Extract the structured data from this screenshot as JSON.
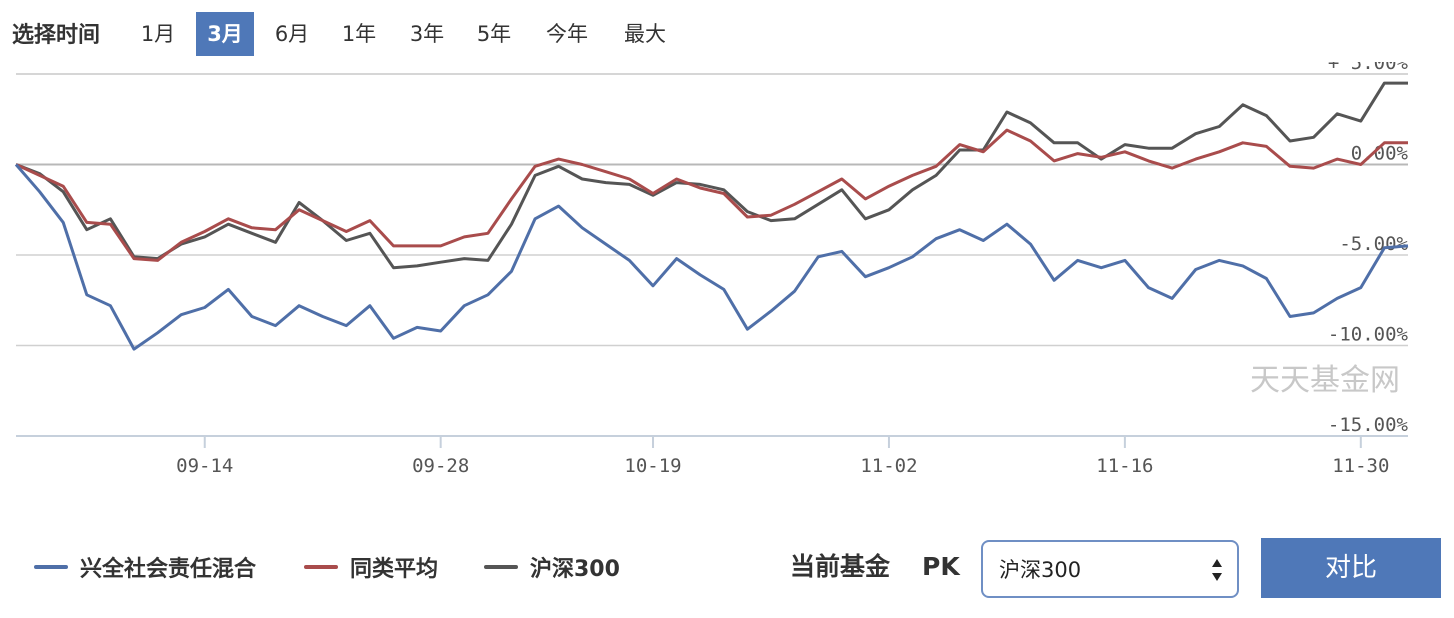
{
  "range_selector": {
    "label": "选择时间",
    "options": [
      "1月",
      "3月",
      "6月",
      "1年",
      "3年",
      "5年",
      "今年",
      "最大"
    ],
    "active": "3月"
  },
  "chart_data": {
    "type": "line",
    "x_ticks": [
      "09-14",
      "09-28",
      "10-19",
      "11-02",
      "11-16",
      "11-30"
    ],
    "y_ticks": [
      "+ 5.00%",
      "0.00%",
      "-5.00%",
      "-10.00%",
      "-15.00%"
    ],
    "ylim": [
      -15,
      5
    ],
    "watermark": "天天基金网",
    "series": [
      {
        "name": "兴全社会责任混合",
        "color": "#4f6fa8",
        "values": [
          0,
          -1.5,
          -3.2,
          -7.2,
          -7.8,
          -10.2,
          -9.3,
          -8.3,
          -7.9,
          -6.9,
          -8.4,
          -8.9,
          -7.8,
          -8.4,
          -8.9,
          -7.8,
          -9.6,
          -9,
          -9.2,
          -7.8,
          -7.2,
          -5.9,
          -3,
          -2.3,
          -3.5,
          -4.4,
          -5.3,
          -6.7,
          -5.2,
          -6.1,
          -6.9,
          -9.1,
          -8.1,
          -7,
          -5.1,
          -4.8,
          -6.2,
          -5.7,
          -5.1,
          -4.1,
          -3.6,
          -4.2,
          -3.3,
          -4.4,
          -6.4,
          -5.3,
          -5.7,
          -5.3,
          -6.8,
          -7.4,
          -5.8,
          -5.3,
          -5.6,
          -6.3,
          -8.4,
          -8.2,
          -7.4,
          -6.8,
          -4.6,
          -4.5
        ]
      },
      {
        "name": "同类平均",
        "color": "#a94c4c",
        "values": [
          0,
          -0.6,
          -1.2,
          -3.2,
          -3.3,
          -5.2,
          -5.3,
          -4.3,
          -3.7,
          -3,
          -3.5,
          -3.6,
          -2.5,
          -3.1,
          -3.7,
          -3.1,
          -4.5,
          -4.5,
          -4.5,
          -4,
          -3.8,
          -1.9,
          -0.1,
          0.3,
          0,
          -0.4,
          -0.8,
          -1.6,
          -0.8,
          -1.3,
          -1.6,
          -2.9,
          -2.8,
          -2.2,
          -1.5,
          -0.8,
          -1.9,
          -1.2,
          -0.6,
          -0.1,
          1.1,
          0.7,
          1.9,
          1.3,
          0.2,
          0.6,
          0.4,
          0.7,
          0.2,
          -0.2,
          0.3,
          0.7,
          1.2,
          1,
          -0.1,
          -0.2,
          0.3,
          0,
          1.2,
          1.2
        ]
      },
      {
        "name": "沪深300",
        "color": "#555555",
        "values": [
          0,
          -0.5,
          -1.5,
          -3.6,
          -3,
          -5.1,
          -5.2,
          -4.4,
          -4,
          -3.3,
          -3.8,
          -4.3,
          -2.1,
          -3.1,
          -4.2,
          -3.8,
          -5.7,
          -5.6,
          -5.4,
          -5.2,
          -5.3,
          -3.3,
          -0.6,
          -0.1,
          -0.8,
          -1,
          -1.1,
          -1.7,
          -1,
          -1.1,
          -1.4,
          -2.6,
          -3.1,
          -3,
          -2.2,
          -1.4,
          -3,
          -2.5,
          -1.4,
          -0.6,
          0.8,
          0.8,
          2.9,
          2.3,
          1.2,
          1.2,
          0.3,
          1.1,
          0.9,
          0.9,
          1.7,
          2.1,
          3.3,
          2.7,
          1.3,
          1.5,
          2.8,
          2.4,
          4.5,
          4.5
        ]
      }
    ]
  },
  "compare_bar": {
    "current_label": "当前基金",
    "pk_label": "PK",
    "selected_option": "沪深300",
    "compare_button": "对比"
  }
}
